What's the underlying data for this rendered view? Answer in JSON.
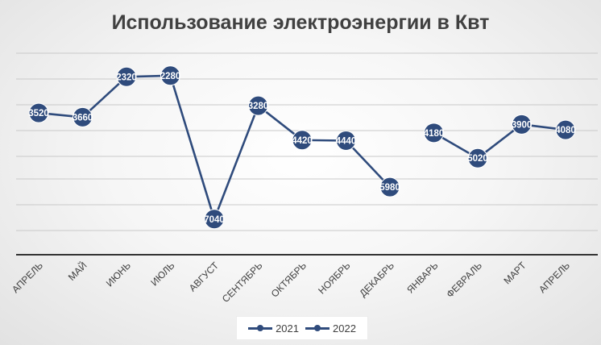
{
  "chart_data": {
    "type": "line",
    "title": "Использование электроэнергии в Квт",
    "categories": [
      "АПРЕЛЬ",
      "МАЙ",
      "ИЮНЬ",
      "ИЮЛЬ",
      "АВГУСТ",
      "СЕНТЯБРЬ",
      "ОКТЯБРЬ",
      "НОЯБРЬ",
      "ДЕКАБРЬ",
      "ЯНВАРЬ",
      "ФЕВРАЛЬ",
      "МАРТ",
      "АПРЕЛЬ"
    ],
    "series": [
      {
        "name": "2021",
        "values": [
          3520,
          3660,
          2320,
          2280,
          7040,
          3280,
          4420,
          4440,
          5980,
          null,
          null,
          null,
          null
        ]
      },
      {
        "name": "2022",
        "values": [
          null,
          null,
          null,
          null,
          null,
          null,
          null,
          null,
          null,
          4180,
          5020,
          3900,
          4080
        ]
      }
    ],
    "grid": true,
    "legend_position": "bottom",
    "line_color": "#2f4b7c"
  }
}
